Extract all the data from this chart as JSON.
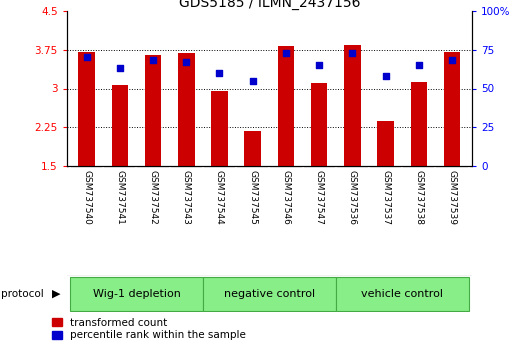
{
  "title": "GDS5185 / ILMN_2437156",
  "samples": [
    "GSM737540",
    "GSM737541",
    "GSM737542",
    "GSM737543",
    "GSM737544",
    "GSM737545",
    "GSM737546",
    "GSM737547",
    "GSM737536",
    "GSM737537",
    "GSM737538",
    "GSM737539"
  ],
  "bar_values": [
    3.7,
    3.06,
    3.65,
    3.68,
    2.95,
    2.18,
    3.82,
    3.11,
    3.84,
    2.38,
    3.12,
    3.7
  ],
  "percentile_values": [
    70,
    63,
    68,
    67,
    60,
    55,
    73,
    65,
    73,
    58,
    65,
    68
  ],
  "bar_color": "#cc0000",
  "dot_color": "#0000cc",
  "ylim_left": [
    1.5,
    4.5
  ],
  "ylim_right": [
    0,
    100
  ],
  "yticks_left": [
    1.5,
    2.25,
    3.0,
    3.75,
    4.5
  ],
  "ytick_labels_left": [
    "1.5",
    "2.25",
    "3",
    "3.75",
    "4.5"
  ],
  "yticks_right": [
    0,
    25,
    50,
    75,
    100
  ],
  "ytick_labels_right": [
    "0",
    "25",
    "50",
    "75",
    "100%"
  ],
  "grid_values": [
    2.25,
    3.0,
    3.75
  ],
  "groups": [
    {
      "label": "Wig-1 depletion",
      "indices": [
        0,
        1,
        2,
        3
      ]
    },
    {
      "label": "negative control",
      "indices": [
        4,
        5,
        6,
        7
      ]
    },
    {
      "label": "vehicle control",
      "indices": [
        8,
        9,
        10,
        11
      ]
    }
  ],
  "group_color": "#88ee88",
  "group_edge_color": "#44aa44",
  "protocol_label": "protocol",
  "legend_red": "transformed count",
  "legend_blue": "percentile rank within the sample",
  "bar_width": 0.5,
  "background_color": "#ffffff",
  "label_area_color": "#c8c8c8",
  "label_area_edge": "#888888"
}
